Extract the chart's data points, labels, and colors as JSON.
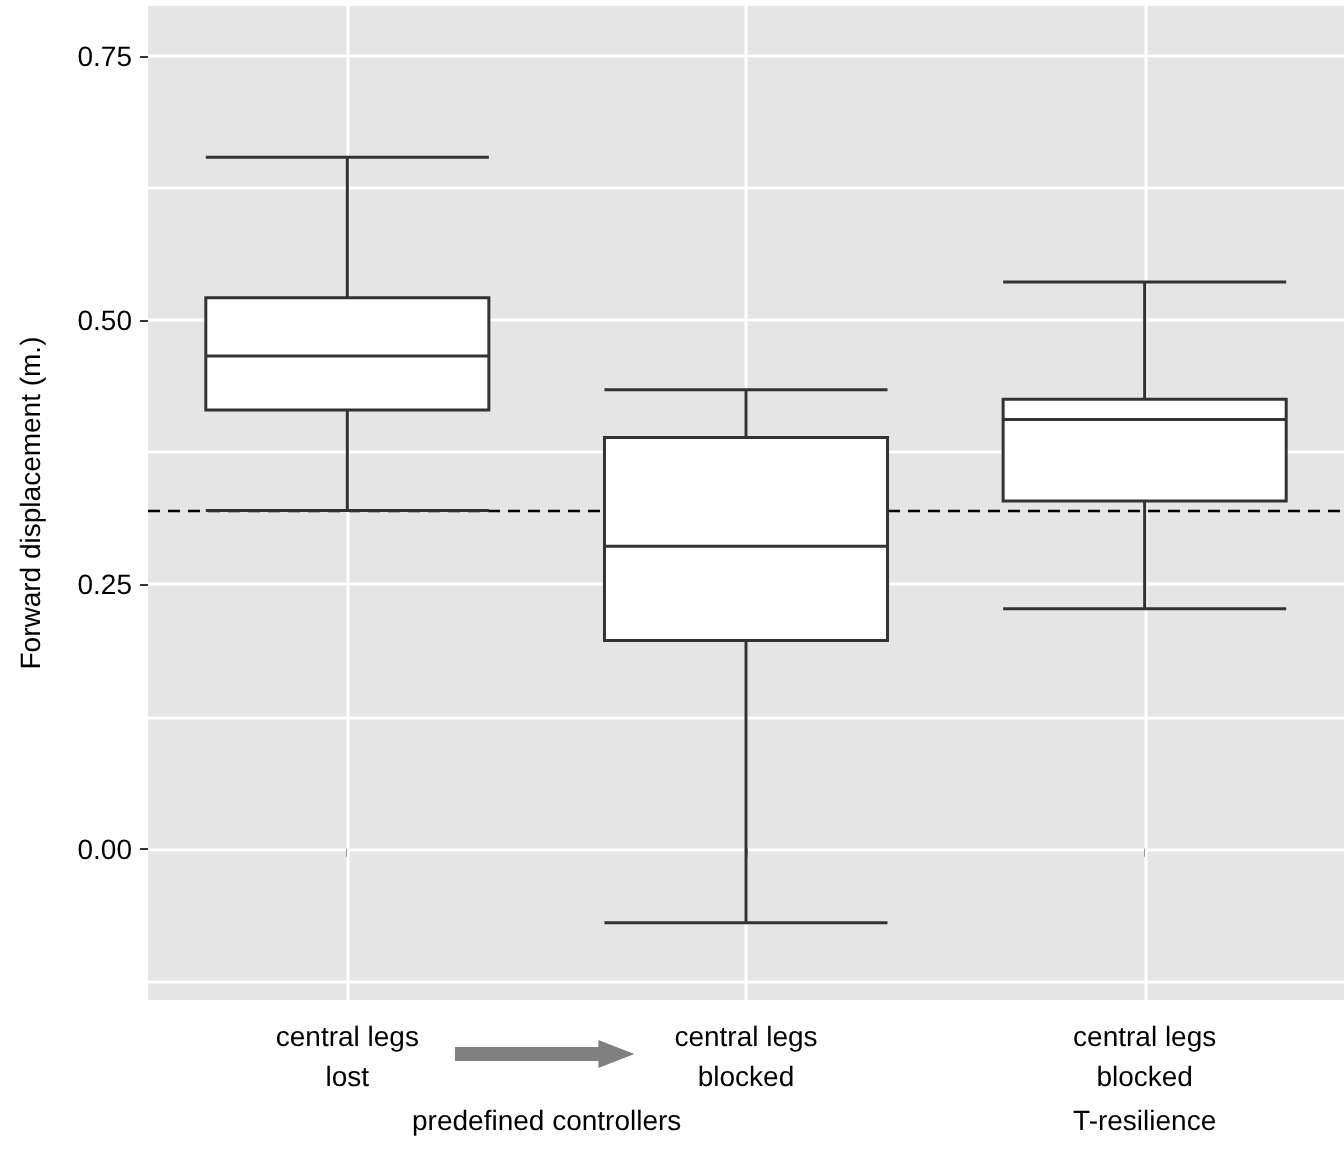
{
  "chart_data": {
    "type": "box",
    "ylabel": "Forward displacement (m.)",
    "categories": [
      "central legs\nlost",
      "central legs\nblocked",
      "central legs\nblocked"
    ],
    "boxes": [
      {
        "low": 0.32,
        "q1": 0.415,
        "median": 0.466,
        "q3": 0.521,
        "high": 0.654
      },
      {
        "low": -0.07,
        "q1": 0.197,
        "median": 0.286,
        "q3": 0.389,
        "high": 0.434
      },
      {
        "low": 0.227,
        "q1": 0.329,
        "median": 0.406,
        "q3": 0.425,
        "high": 0.536
      }
    ],
    "color": "#ffffff",
    "ylim": [
      -0.143,
      0.797
    ],
    "yticks": [
      {
        "value": -0.125,
        "label": null
      },
      {
        "value": 0,
        "label": "0.00"
      },
      {
        "value": 0.125,
        "label": null
      },
      {
        "value": 0.25,
        "label": "0.25"
      },
      {
        "value": 0.375,
        "label": null
      },
      {
        "value": 0.5,
        "label": "0.50"
      },
      {
        "value": 0.625,
        "label": null
      },
      {
        "value": 0.75,
        "label": "0.75"
      }
    ],
    "ref_lines": [
      {
        "axis": "y",
        "value": 0.32,
        "color": "#000000",
        "line_style": "dashed"
      }
    ],
    "annotations": [
      "predefined controllers",
      "T-resilience"
    ],
    "grid": true
  }
}
